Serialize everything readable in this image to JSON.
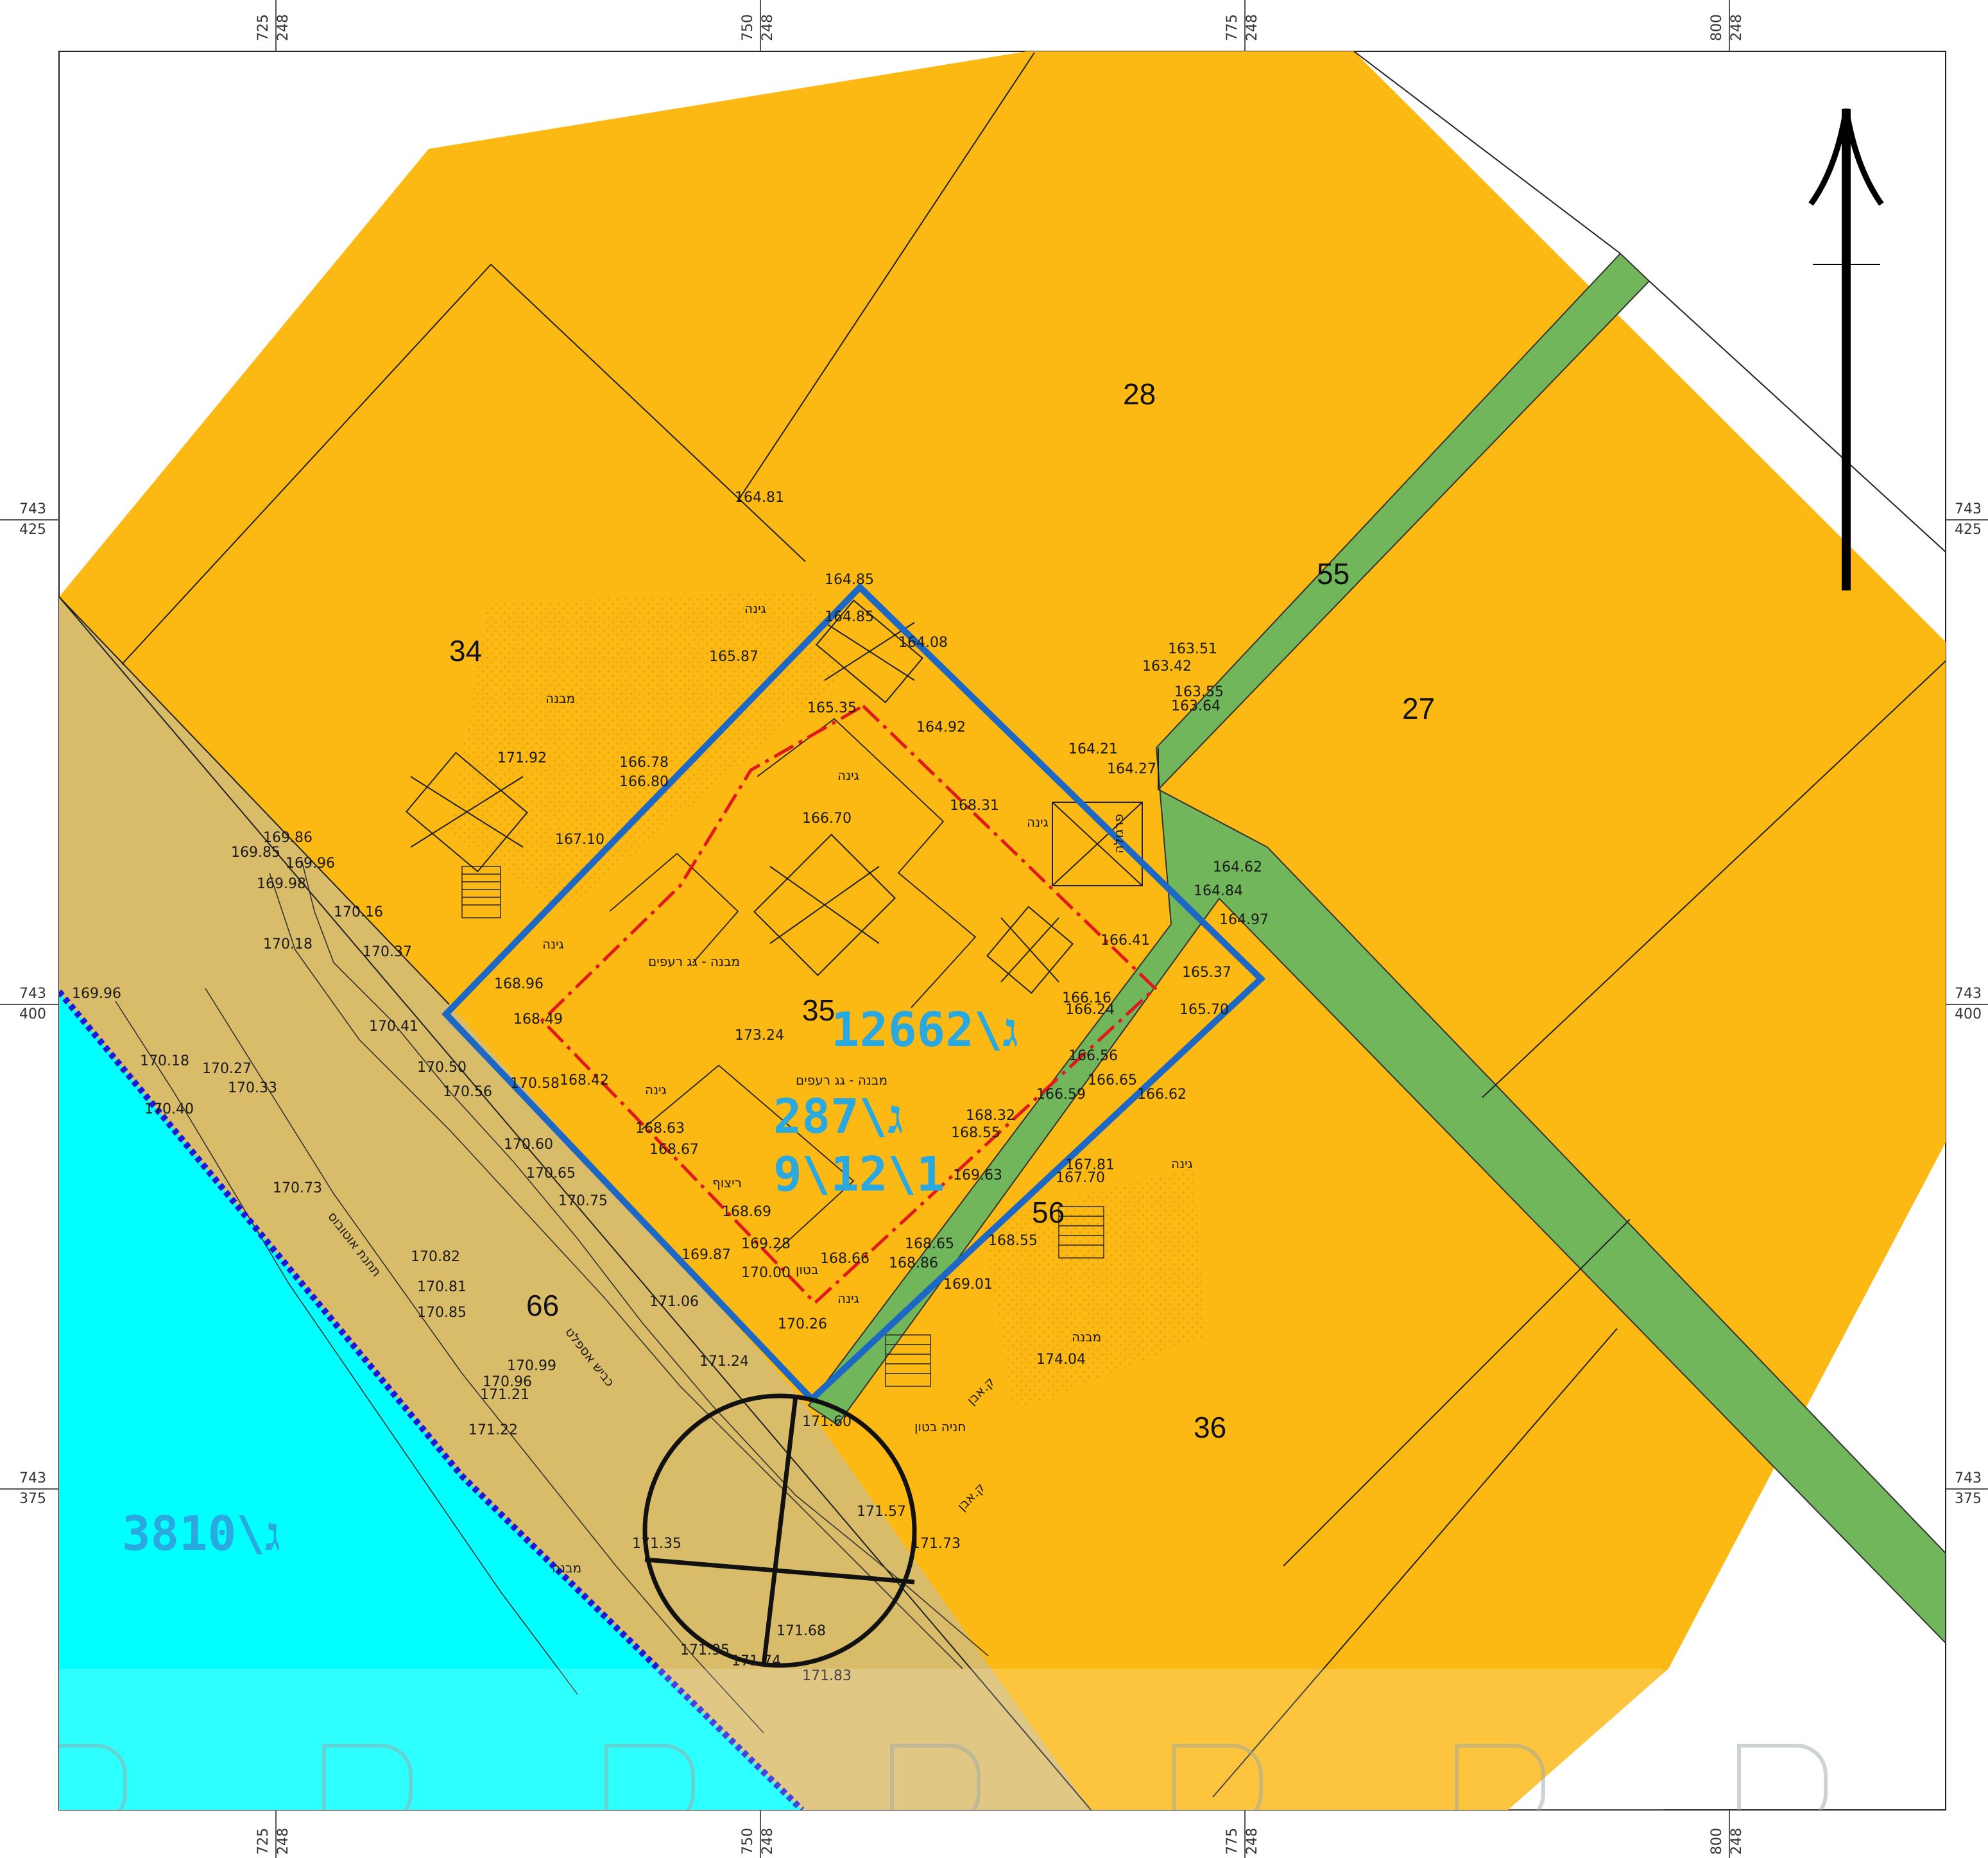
{
  "grid": {
    "top_labels": [
      {
        "a": "725",
        "b": "248"
      },
      {
        "a": "750",
        "b": "248"
      },
      {
        "a": "775",
        "b": "248"
      },
      {
        "a": "800",
        "b": "248"
      }
    ],
    "side_labels": [
      {
        "a": "743",
        "b": "425"
      },
      {
        "a": "743",
        "b": "400"
      },
      {
        "a": "743",
        "b": "375"
      }
    ]
  },
  "colors": {
    "residential": "#FDB913",
    "road": "#D9BC6A",
    "path": "#72B65C",
    "adjacent_plan": "#00FFFF",
    "plan_boundary": "#1C68C4",
    "building_line": "#E0191C",
    "plan_text": "#2AA9E0"
  },
  "parcels": {
    "p28": "28",
    "p34": "34",
    "p27": "27",
    "p55": "55",
    "p35": "35",
    "p56": "56",
    "p66": "66",
    "p36": "36"
  },
  "plans": {
    "main": "ג\\12662",
    "secondary_1": "ג\\287",
    "secondary_2": "9\\12\\1",
    "adjacent": "ג\\3810"
  },
  "elevations": {
    "e1": "164.81",
    "e2": "164.85",
    "e3": "164.85",
    "e4": "164.08",
    "e5": "165.87",
    "e6": "165.35",
    "e7": "164.92",
    "e8": "166.78",
    "e9": "166.80",
    "e10": "166.70",
    "e11": "171.92",
    "e12": "167.10",
    "e13": "169.86",
    "e14": "169.85",
    "e15": "169.96",
    "e16": "169.98",
    "e17": "170.16",
    "e18": "170.18",
    "e19": "170.37",
    "e20": "169.96",
    "e21": "168.96",
    "e22": "170.41",
    "e23": "168.49",
    "e24": "173.24",
    "e25": "170.18",
    "e26": "170.27",
    "e27": "170.33",
    "e28": "170.50",
    "e29": "170.56",
    "e30": "170.58",
    "e31": "168.42",
    "e32": "170.40",
    "e33": "168.63",
    "e34": "168.67",
    "e35": "170.60",
    "e36": "170.65",
    "e37": "170.75",
    "e38": "170.73",
    "e39": "168.69",
    "e40": "169.87",
    "e41": "169.28",
    "e42": "170.82",
    "e43": "170.81",
    "e44": "170.85",
    "e45": "171.06",
    "e46": "170.26",
    "e47": "171.24",
    "e48": "170.99",
    "e49": "170.96",
    "e50": "171.21",
    "e51": "171.22",
    "e52": "171.60",
    "e53": "171.57",
    "e54": "171.73",
    "e55": "171.35",
    "e56": "171.68",
    "e57": "171.95",
    "e58": "171.74",
    "e59": "171.83",
    "e60": "163.51",
    "e61": "163.42",
    "e62": "163.55",
    "e63": "163.64",
    "e64": "164.21",
    "e65": "164.27",
    "e66": "168.31",
    "e67": "164.62",
    "e68": "164.84",
    "e69": "164.97",
    "e70": "166.41",
    "e71": "165.37",
    "e72": "166.16",
    "e73": "166.24",
    "e74": "165.70",
    "e75": "166.56",
    "e76": "166.65",
    "e77": "166.59",
    "e78": "166.62",
    "e79": "168.32",
    "e80": "168.55",
    "e81": "167.81",
    "e82": "167.70",
    "e83": "169.63",
    "e84": "168.65",
    "e85": "168.55",
    "e86": "169.01",
    "e87": "174.04",
    "e88": "168.66",
    "e89": "168.86",
    "e90": "170.00"
  },
  "annotations": {
    "garden": "גינה",
    "building": "מבנה",
    "building_tile_roof": "מבנה - גג רעפים",
    "pergola": "פרגולה",
    "asphalt_road": "כביש אספלט",
    "concrete_parking": "חניה בטון",
    "bus_station": "תחנת אוטובוס",
    "paving": "ריצוף",
    "concrete": "בטון",
    "stone": "ק.אבן"
  }
}
